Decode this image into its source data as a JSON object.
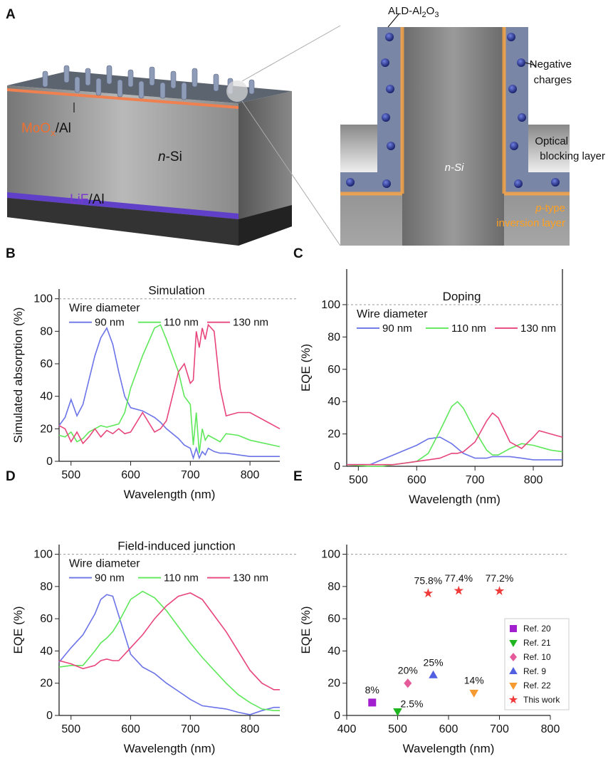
{
  "panel_a": {
    "label": "A",
    "moox": [
      "MoO",
      "x",
      "/Al"
    ],
    "nsi_block": [
      "n",
      "-Si"
    ],
    "lif": [
      "LiF",
      "/Al"
    ],
    "ald": [
      "ALD-Al",
      "2",
      "O",
      "3"
    ],
    "negative_charges": [
      "Negative",
      "charges"
    ],
    "optical_blocking": [
      "Optical",
      "blocking layer"
    ],
    "nsi_zoom": "n-Si",
    "ptype": [
      "p",
      "-type"
    ],
    "inversion": "inversion layer"
  },
  "chart_data": [
    {
      "type": "line",
      "panel": "B",
      "title": "Simulation",
      "xlabel": "Wavelength (nm)",
      "ylabel": "Simulated absorption (%)",
      "xlim": [
        480,
        850
      ],
      "ylim": [
        0,
        106
      ],
      "xticks": [
        500,
        600,
        700,
        800
      ],
      "yticks": [
        0,
        20,
        40,
        60,
        80,
        100
      ],
      "hline": 100,
      "legend_title": "Wire diameter",
      "x": [
        480,
        490,
        500,
        510,
        520,
        530,
        540,
        550,
        560,
        570,
        580,
        590,
        600,
        620,
        640,
        650,
        660,
        680,
        690,
        700,
        705,
        710,
        715,
        720,
        725,
        730,
        740,
        750,
        760,
        780,
        800,
        850
      ],
      "series": [
        {
          "name": "90 nm",
          "color": "#6b73e8",
          "values": [
            22,
            27,
            38,
            28,
            35,
            50,
            65,
            76,
            82,
            72,
            55,
            40,
            33,
            31,
            27,
            24,
            20,
            14,
            10,
            8,
            2,
            8,
            2,
            6,
            4,
            8,
            6,
            5,
            5,
            4,
            3,
            3
          ]
        },
        {
          "name": "110 nm",
          "color": "#5ee85a",
          "values": [
            16,
            15,
            18,
            12,
            14,
            18,
            20,
            22,
            21,
            22,
            23,
            30,
            45,
            65,
            82,
            84,
            75,
            55,
            40,
            35,
            10,
            30,
            5,
            20,
            13,
            16,
            14,
            12,
            17,
            16,
            13,
            9
          ]
        },
        {
          "name": "130 nm",
          "color": "#e8457a",
          "values": [
            22,
            20,
            12,
            18,
            11,
            15,
            20,
            15,
            19,
            17,
            20,
            17,
            18,
            30,
            18,
            20,
            25,
            55,
            60,
            48,
            50,
            80,
            70,
            82,
            75,
            84,
            80,
            45,
            28,
            30,
            30,
            20
          ]
        }
      ]
    },
    {
      "type": "line",
      "panel": "C",
      "title": "Doping",
      "xlabel": "Wavelength (nm)",
      "ylabel": "EQE (%)",
      "xlim": [
        480,
        850
      ],
      "ylim": [
        0,
        122
      ],
      "xticks": [
        500,
        600,
        700,
        800
      ],
      "yticks": [
        0,
        20,
        40,
        60,
        80,
        100
      ],
      "hline": 100,
      "legend_title": "Wire diameter",
      "x": [
        480,
        500,
        520,
        540,
        560,
        580,
        600,
        620,
        640,
        660,
        670,
        680,
        700,
        720,
        730,
        740,
        760,
        780,
        800,
        810,
        830,
        850
      ],
      "series": [
        {
          "name": "90 nm",
          "color": "#6b73e8",
          "values": [
            1,
            1,
            1,
            4,
            7,
            10,
            13,
            17,
            18,
            14,
            11,
            8,
            5,
            5,
            6,
            6,
            6,
            5,
            4,
            4,
            4,
            4
          ]
        },
        {
          "name": "110 nm",
          "color": "#5ee85a",
          "values": [
            1,
            0.5,
            0,
            0,
            1,
            2,
            3,
            8,
            22,
            37,
            40,
            36,
            22,
            10,
            7,
            7,
            11,
            14,
            13,
            12,
            10,
            9
          ]
        },
        {
          "name": "130 nm",
          "color": "#e8457a",
          "values": [
            1,
            1,
            1,
            1,
            1,
            2,
            3,
            4,
            5,
            8,
            8,
            9,
            15,
            28,
            33,
            30,
            15,
            11,
            18,
            22,
            20,
            18
          ]
        }
      ]
    },
    {
      "type": "line",
      "panel": "D",
      "title": "Field-induced junction",
      "xlabel": "Wavelength (nm)",
      "ylabel": "EQE (%)",
      "xlim": [
        480,
        850
      ],
      "ylim": [
        0,
        106
      ],
      "xticks": [
        500,
        600,
        700,
        800
      ],
      "yticks": [
        0,
        20,
        40,
        60,
        80,
        100
      ],
      "hline": 100,
      "legend_title": "Wire diameter",
      "x": [
        480,
        500,
        520,
        540,
        550,
        560,
        570,
        580,
        600,
        620,
        640,
        660,
        680,
        700,
        720,
        740,
        760,
        780,
        800,
        820,
        840,
        850
      ],
      "series": [
        {
          "name": "90 nm",
          "color": "#6b73e8",
          "values": [
            33,
            42,
            50,
            63,
            72,
            75,
            74,
            62,
            38,
            30,
            26,
            20,
            15,
            10,
            6,
            5,
            4,
            2,
            0.5,
            3,
            5,
            5
          ]
        },
        {
          "name": "110 nm",
          "color": "#5ee85a",
          "values": [
            30,
            31,
            31,
            40,
            45,
            48,
            52,
            58,
            72,
            77,
            73,
            65,
            55,
            45,
            36,
            28,
            20,
            13,
            8,
            4,
            3,
            3
          ]
        },
        {
          "name": "130 nm",
          "color": "#e8457a",
          "values": [
            34,
            32,
            29,
            31,
            34,
            35,
            34,
            34,
            42,
            50,
            60,
            68,
            74,
            76,
            72,
            62,
            52,
            40,
            28,
            20,
            16,
            16
          ]
        }
      ]
    },
    {
      "type": "scatter",
      "panel": "E",
      "xlabel": "Wavelength (nm)",
      "ylabel": "EQE (%)",
      "xlim": [
        400,
        800
      ],
      "ylim": [
        0,
        106
      ],
      "xticks": [
        400,
        500,
        600,
        700,
        800
      ],
      "yticks": [
        0,
        20,
        40,
        60,
        80,
        100
      ],
      "hline": 100,
      "legend": "lower right",
      "series": [
        {
          "name": "Ref. 20",
          "color": "#a21fd0",
          "marker": "square",
          "x": [
            450
          ],
          "values": [
            8
          ],
          "value_labels": [
            "8%"
          ]
        },
        {
          "name": "Ref. 21",
          "color": "#1fb51f",
          "marker": "triangle-down",
          "x": [
            500
          ],
          "values": [
            2.5
          ],
          "value_labels": [
            "2.5%"
          ]
        },
        {
          "name": "Ref. 10",
          "color": "#e55a9a",
          "marker": "diamond",
          "x": [
            520
          ],
          "values": [
            20
          ],
          "value_labels": [
            "20%"
          ]
        },
        {
          "name": "Ref. 9",
          "color": "#5060e0",
          "marker": "triangle",
          "x": [
            570
          ],
          "values": [
            25
          ],
          "value_labels": [
            "25%"
          ]
        },
        {
          "name": "Ref. 22",
          "color": "#f59a30",
          "marker": "triangle-down",
          "x": [
            650
          ],
          "values": [
            14
          ],
          "value_labels": [
            "14%"
          ]
        },
        {
          "name": "This work",
          "color": "#f03a3a",
          "marker": "star",
          "x": [
            560,
            620,
            700
          ],
          "values": [
            75.8,
            77.4,
            77.2
          ],
          "value_labels": [
            "75.8%",
            "77.4%",
            "77.2%"
          ]
        }
      ]
    }
  ]
}
